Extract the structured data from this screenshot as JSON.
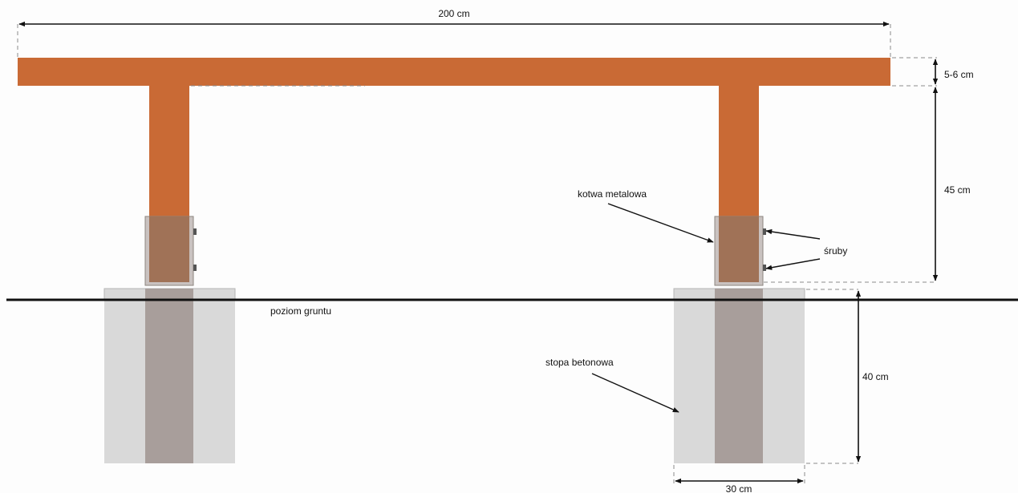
{
  "dimensions": {
    "length": "200 cm",
    "beam_thickness": "5-6 cm",
    "post_height": "45 cm",
    "footing_depth": "40 cm",
    "footing_width": "30 cm"
  },
  "labels": {
    "anchor": "kotwa metalowa",
    "bolts": "śruby",
    "ground_level": "poziom gruntu",
    "footing": "stopa betonowa"
  },
  "colors": {
    "wood": "#c96a35",
    "anchor_fill": "#a07257",
    "anchor_plate": "#c9c2c0",
    "concrete": "#d9d9d9",
    "concrete_edge": "#b5b5b5",
    "buried_post": "#a89e9b",
    "line": "#111111",
    "dashed": "#8a8a8a"
  }
}
